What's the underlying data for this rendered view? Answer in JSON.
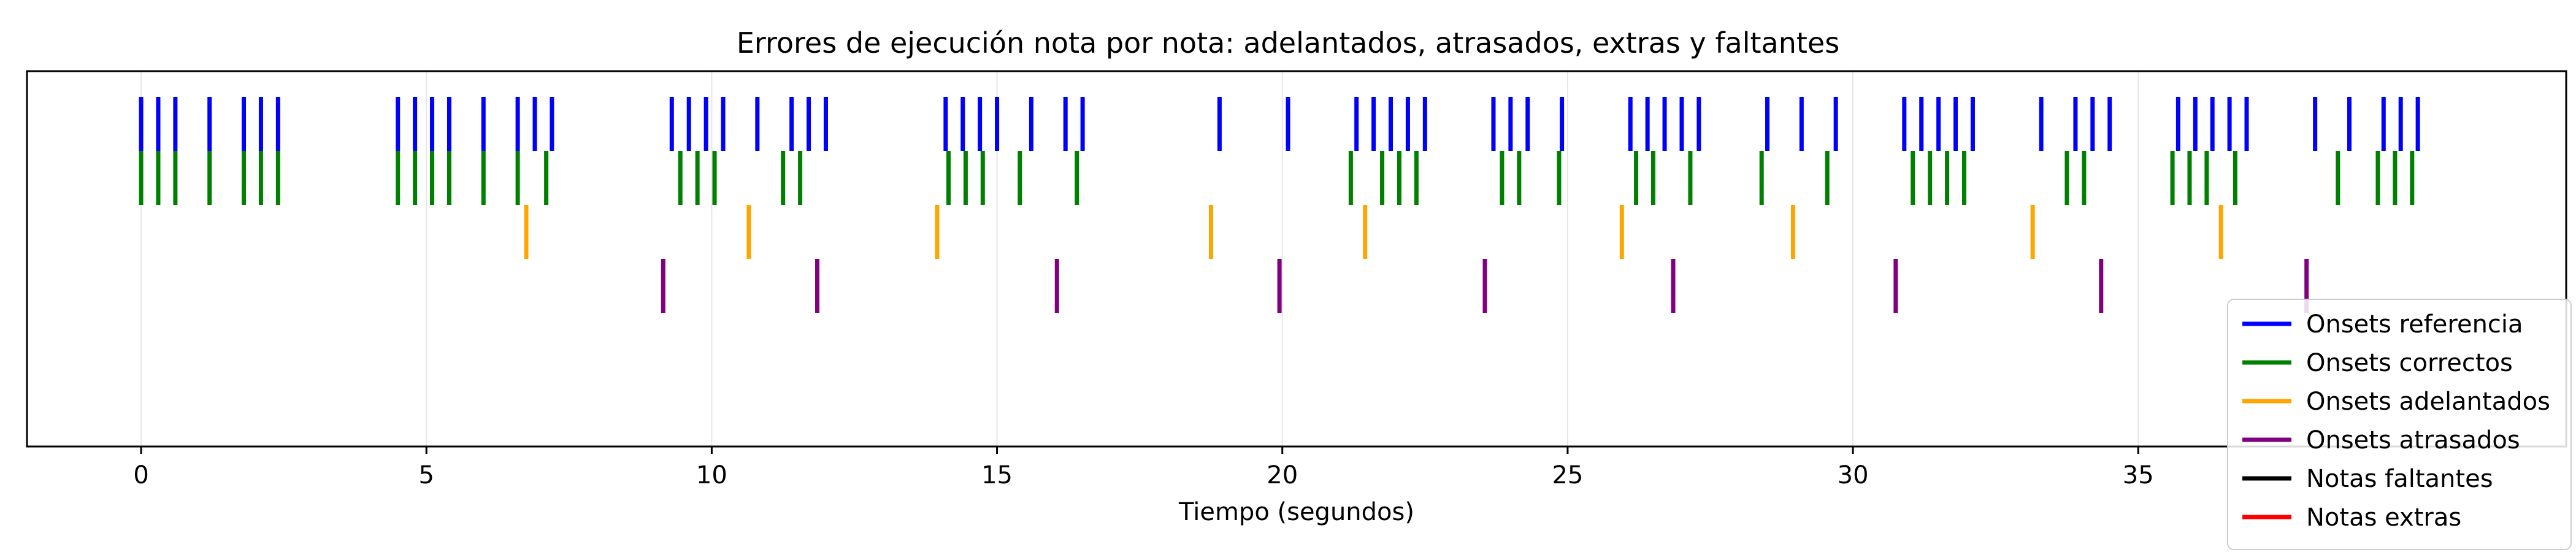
{
  "chart_data": {
    "type": "eventplot",
    "title": "Errores de ejecución nota por nota: adelantados, atrasados, extras y faltantes",
    "xlabel": "Tiempo (segundos)",
    "ylabel": "",
    "xlim": [
      -2.0,
      42.5
    ],
    "xticks": [
      0,
      5,
      10,
      15,
      20,
      25,
      30,
      35
    ],
    "grid": "vertical",
    "legend_position": "lower-right",
    "series": [
      {
        "name": "Onsets referencia",
        "color": "#0000ff",
        "row": 0,
        "x": [
          0.0,
          0.3,
          0.6,
          1.2,
          1.8,
          2.1,
          2.4,
          4.5,
          4.8,
          5.1,
          5.4,
          6.0,
          6.6,
          6.9,
          7.2,
          9.3,
          9.6,
          9.9,
          10.2,
          10.8,
          11.4,
          11.7,
          12.0,
          14.1,
          14.4,
          14.7,
          15.0,
          15.6,
          16.2,
          16.5,
          18.9,
          20.1,
          21.3,
          21.6,
          21.9,
          22.2,
          22.5,
          23.7,
          24.0,
          24.3,
          24.9,
          26.1,
          26.4,
          26.7,
          27.0,
          27.3,
          28.5,
          29.1,
          29.7,
          30.9,
          31.2,
          31.5,
          31.8,
          32.1,
          33.3,
          33.9,
          34.2,
          34.5,
          35.7,
          36.0,
          36.3,
          36.6,
          36.9,
          38.1,
          38.7,
          39.3,
          39.6,
          39.9
        ]
      },
      {
        "name": "Onsets correctos",
        "color": "#008000",
        "row": 1,
        "x": [
          0.0,
          0.3,
          0.6,
          1.2,
          1.8,
          2.1,
          2.4,
          4.5,
          4.8,
          5.1,
          5.4,
          6.0,
          6.6,
          7.1,
          9.45,
          9.75,
          10.05,
          11.25,
          11.55,
          14.15,
          14.45,
          14.75,
          15.4,
          16.4,
          21.2,
          21.75,
          22.05,
          22.35,
          23.85,
          24.15,
          24.85,
          26.2,
          26.5,
          27.15,
          28.4,
          29.55,
          31.05,
          31.35,
          31.65,
          31.95,
          33.75,
          34.05,
          35.6,
          35.9,
          36.2,
          36.7,
          38.5,
          39.2,
          39.5,
          39.8
        ]
      },
      {
        "name": "Onsets adelantados",
        "color": "#ffa500",
        "row": 2,
        "x": [
          6.75,
          10.65,
          13.95,
          18.75,
          21.45,
          25.95,
          28.95,
          33.15,
          36.45
        ]
      },
      {
        "name": "Onsets atrasados",
        "color": "#800080",
        "row": 3,
        "x": [
          9.15,
          11.85,
          16.05,
          19.95,
          23.55,
          26.85,
          30.75,
          34.35,
          37.95
        ]
      },
      {
        "name": "Notas faltantes",
        "color": "#000000",
        "row": 4,
        "x": []
      },
      {
        "name": "Notas extras",
        "color": "#ff0000",
        "row": 5,
        "x": []
      }
    ]
  }
}
